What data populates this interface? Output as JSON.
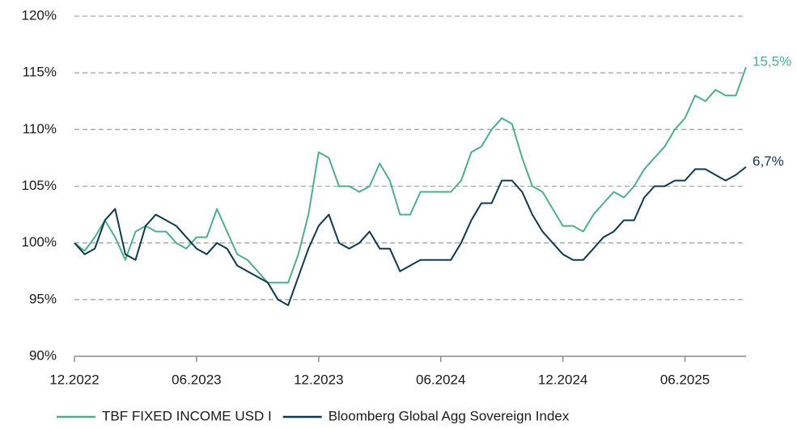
{
  "chart_data": {
    "type": "line",
    "categories": [
      "12.2022",
      null,
      null,
      null,
      null,
      null,
      null,
      null,
      null,
      null,
      null,
      null,
      "06.2023",
      null,
      null,
      null,
      null,
      null,
      null,
      null,
      null,
      null,
      null,
      null,
      "12.2023",
      null,
      null,
      null,
      null,
      null,
      null,
      null,
      null,
      null,
      null,
      null,
      "06.2024",
      null,
      null,
      null,
      null,
      null,
      null,
      null,
      null,
      null,
      null,
      null,
      "12.2024",
      null,
      null,
      null,
      null,
      null,
      null,
      null,
      null,
      null,
      null,
      null,
      "06.2025",
      null,
      null,
      null,
      null,
      null,
      null
    ],
    "series": [
      {
        "name": "TBF FIXED INCOME USD I",
        "color": "#4fae8c",
        "end_label": "15,5%",
        "values": [
          100,
          99.3,
          100.5,
          102,
          100.5,
          98.5,
          101,
          101.5,
          101,
          101,
          100,
          99.5,
          100.5,
          100.5,
          103,
          101,
          99,
          98.5,
          97.5,
          96.5,
          96.5,
          96.5,
          99,
          102.5,
          108,
          107.5,
          105,
          105,
          104.5,
          105,
          107,
          105.5,
          102.5,
          102.5,
          104.5,
          104.5,
          104.5,
          104.5,
          105.5,
          108,
          108.5,
          110,
          111,
          110.5,
          107.5,
          105,
          104.5,
          103,
          101.5,
          101.5,
          101,
          102.5,
          103.5,
          104.5,
          104,
          105,
          106.5,
          107.5,
          108.5,
          110,
          111,
          113,
          112.5,
          113.5,
          113,
          113,
          115.5
        ]
      },
      {
        "name": "Bloomberg Global Agg Sovereign Index",
        "color": "#0e3a4f",
        "end_label": "6,7%",
        "values": [
          100,
          99,
          99.5,
          102,
          103,
          99,
          98.5,
          101.5,
          102.5,
          102,
          101.5,
          100.5,
          99.5,
          99,
          100,
          99.5,
          98,
          97.5,
          97,
          96.5,
          95,
          94.5,
          97,
          99.5,
          101.5,
          102.5,
          100,
          99.5,
          100,
          101,
          99.5,
          99.5,
          97.5,
          98,
          98.5,
          98.5,
          98.5,
          98.5,
          100,
          102,
          103.5,
          103.5,
          105.5,
          105.5,
          104.5,
          102.5,
          101,
          100,
          99,
          98.5,
          98.5,
          99.5,
          100.5,
          101,
          102,
          102,
          104,
          105,
          105,
          105.5,
          105.5,
          106.5,
          106.5,
          106,
          105.5,
          106,
          106.7
        ]
      }
    ],
    "ylim": [
      90,
      120
    ],
    "yticks": [
      {
        "value": 90,
        "label": "90%"
      },
      {
        "value": 95,
        "label": "95%"
      },
      {
        "value": 100,
        "label": "100%"
      },
      {
        "value": 105,
        "label": "105%"
      },
      {
        "value": 110,
        "label": "110%"
      },
      {
        "value": 115,
        "label": "115%"
      },
      {
        "value": 120,
        "label": "120%"
      }
    ],
    "grid": true,
    "legend": "bottom"
  }
}
